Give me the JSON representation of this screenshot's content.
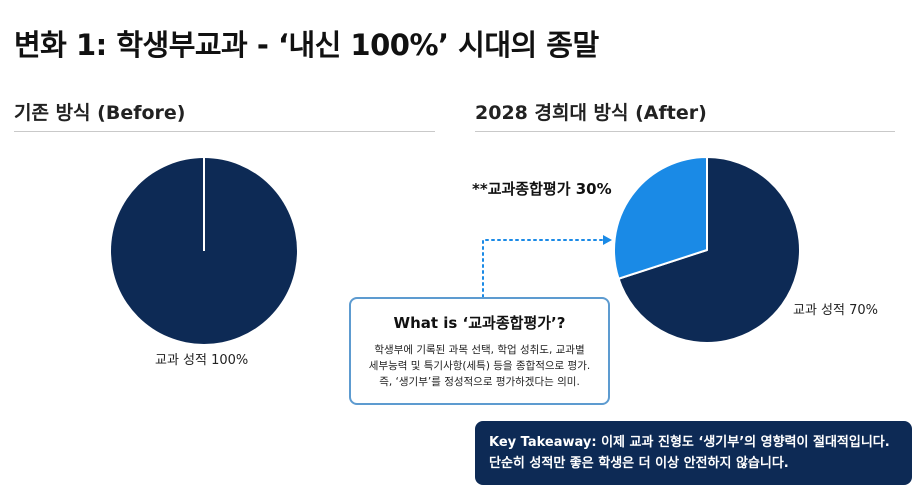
{
  "title": "변화 1: 학생부교과 - ‘내신 100%’ 시대의 종말",
  "chart_data": [
    {
      "type": "pie",
      "title": "기존 방식 (Before)",
      "slices": [
        {
          "label": "교과 성적 100%",
          "value": 100,
          "color": "#0d2a55"
        }
      ]
    },
    {
      "type": "pie",
      "title": "2028 경희대 방식 (After)",
      "slices": [
        {
          "label": "교과 성적 70%",
          "value": 70,
          "color": "#0d2a55"
        },
        {
          "label": "**교과종합평가 30%",
          "value": 30,
          "color": "#1a8ae6"
        }
      ]
    }
  ],
  "info_box": {
    "title": "What is ‘교과종합평가’?",
    "lines": [
      "학생부에 기록된 과목 선택, 학업 성취도, 교과별",
      "세부능력 및 특기사항(세특) 등을 종합적으로 평가.",
      "즉, ‘생기부’를 정성적으로 평가하겠다는 의미."
    ]
  },
  "takeaway": {
    "lines": [
      "Key Takeaway: 이제 교과 진형도 ‘생기부’의 영향력이 절대적입니다.",
      "단순히 성적만 좋은 학생은 더 이상 안전하지 않습니다."
    ]
  }
}
